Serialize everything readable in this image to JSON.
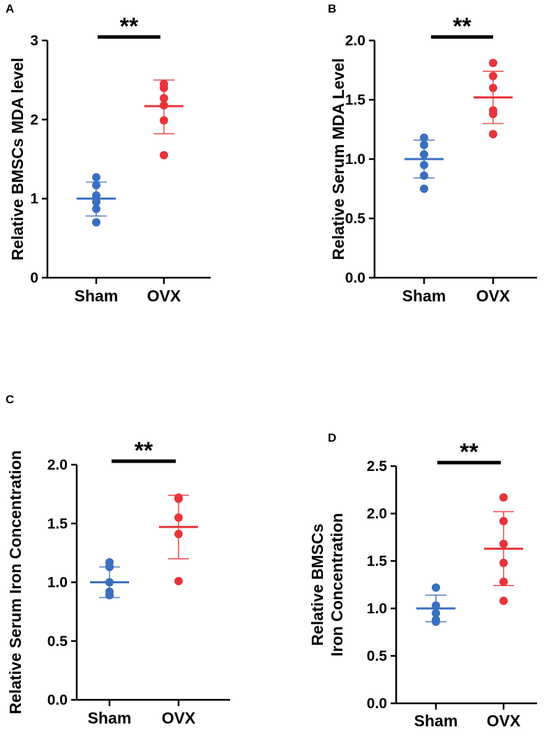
{
  "chart_data": [
    {
      "panel": "A",
      "type": "scatter",
      "title": "",
      "ylabel_lines": [
        "Relative BMSCs MDA level"
      ],
      "categories": [
        "Sham",
        "OVX"
      ],
      "ylim": [
        0,
        3
      ],
      "yticks": [
        "0",
        "1",
        "2",
        "3"
      ],
      "significance": "**",
      "series": [
        {
          "name": "Sham",
          "color": "#3a6fc0",
          "points": [
            1.27,
            1.17,
            1.04,
            0.96,
            0.87,
            0.7
          ],
          "mean": 1.0,
          "sd": [
            0.78,
            1.21
          ]
        },
        {
          "name": "OVX",
          "color": "#e8333a",
          "points": [
            2.45,
            2.4,
            2.27,
            2.18,
            1.99,
            1.55
          ],
          "mean": 2.17,
          "sd": [
            1.82,
            2.5
          ]
        }
      ]
    },
    {
      "panel": "B",
      "type": "scatter",
      "title": "",
      "ylabel_lines": [
        "Relative Serum MDA Level"
      ],
      "categories": [
        "Sham",
        "OVX"
      ],
      "ylim": [
        0,
        2
      ],
      "yticks": [
        "0.0",
        "0.5",
        "1.0",
        "1.5",
        "2.0"
      ],
      "significance": "**",
      "series": [
        {
          "name": "Sham",
          "color": "#3a6fc0",
          "points": [
            1.18,
            1.12,
            1.04,
            0.95,
            0.86,
            0.75
          ],
          "mean": 1.0,
          "sd": [
            0.84,
            1.16
          ]
        },
        {
          "name": "OVX",
          "color": "#e8333a",
          "points": [
            1.81,
            1.7,
            1.6,
            1.41,
            1.38,
            1.21
          ],
          "mean": 1.52,
          "sd": [
            1.3,
            1.74
          ]
        }
      ]
    },
    {
      "panel": "C",
      "type": "scatter",
      "title": "",
      "ylabel_lines": [
        "Relative Serum Iron Concentration"
      ],
      "categories": [
        "Sham",
        "OVX"
      ],
      "ylim": [
        0,
        2
      ],
      "yticks": [
        "0.0",
        "0.5",
        "1.0",
        "1.5",
        "2.0"
      ],
      "significance": "**",
      "series": [
        {
          "name": "Sham",
          "color": "#3a6fc0",
          "points": [
            1.17,
            1.13,
            1.0,
            0.92,
            0.89
          ],
          "mean": 1.0,
          "sd": [
            0.87,
            1.13
          ]
        },
        {
          "name": "OVX",
          "color": "#e8333a",
          "points": [
            1.72,
            1.71,
            1.55,
            1.41,
            1.01
          ],
          "mean": 1.47,
          "sd": [
            1.2,
            1.74
          ]
        }
      ]
    },
    {
      "panel": "D",
      "type": "scatter",
      "title": "",
      "ylabel_lines": [
        "Relative BMSCs",
        "Iron Concentration"
      ],
      "categories": [
        "Sham",
        "OVX"
      ],
      "ylim": [
        0,
        2.5
      ],
      "yticks": [
        "0.0",
        "0.5",
        "1.0",
        "1.5",
        "2.0",
        "2.5"
      ],
      "significance": "**",
      "series": [
        {
          "name": "Sham",
          "color": "#3a6fc0",
          "points": [
            1.22,
            1.03,
            0.95,
            0.88,
            0.86
          ],
          "mean": 1.0,
          "sd": [
            0.86,
            1.14
          ]
        },
        {
          "name": "OVX",
          "color": "#e8333a",
          "points": [
            2.17,
            1.92,
            1.68,
            1.48,
            1.28,
            1.08
          ],
          "mean": 1.63,
          "sd": [
            1.24,
            2.02
          ]
        }
      ]
    }
  ]
}
